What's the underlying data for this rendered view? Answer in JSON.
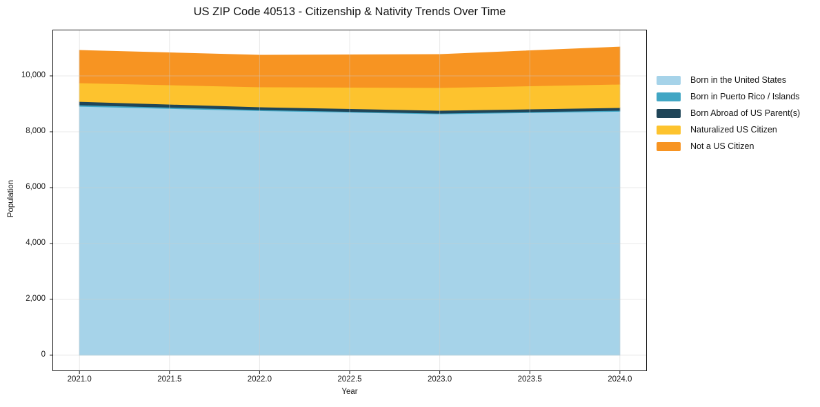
{
  "chart_data": {
    "type": "area",
    "stacked": true,
    "title": "US ZIP Code 40513 - Citizenship & Nativity Trends Over Time",
    "xlabel": "Year",
    "ylabel": "Population",
    "x": [
      2021,
      2022,
      2023,
      2024
    ],
    "series": [
      {
        "name": "Born in the United States",
        "color": "#a6d3e9",
        "values": [
          8910,
          8755,
          8640,
          8730
        ]
      },
      {
        "name": "Born in Puerto Rico / Islands",
        "color": "#41a6c4",
        "values": [
          50,
          35,
          25,
          35
        ]
      },
      {
        "name": "Born Abroad of US Parent(s)",
        "color": "#1f4558",
        "values": [
          125,
          100,
          100,
          100
        ]
      },
      {
        "name": "Naturalized US Citizen",
        "color": "#fdc32e",
        "values": [
          665,
          715,
          815,
          840
        ]
      },
      {
        "name": "Not a US Citizen",
        "color": "#f79422",
        "values": [
          1165,
          1135,
          1185,
          1330
        ]
      }
    ],
    "x_ticks": {
      "values": [
        2021.0,
        2021.5,
        2022.0,
        2022.5,
        2023.0,
        2023.5,
        2024.0
      ],
      "labels": [
        "2021.0",
        "2021.5",
        "2022.0",
        "2022.5",
        "2023.0",
        "2023.5",
        "2024.0"
      ]
    },
    "y_ticks": {
      "values": [
        0,
        2000,
        4000,
        6000,
        8000,
        10000
      ],
      "labels": [
        "0",
        "2,000",
        "4,000",
        "6,000",
        "8,000",
        "10,000"
      ]
    },
    "xlim": [
      2020.85,
      2024.15
    ],
    "ylim": [
      -570,
      11655
    ],
    "grid": true,
    "legend_position": "right-outside",
    "colors": {
      "grid": "#cccccc",
      "spine": "#1a1a1a",
      "background": "#ffffff"
    }
  }
}
